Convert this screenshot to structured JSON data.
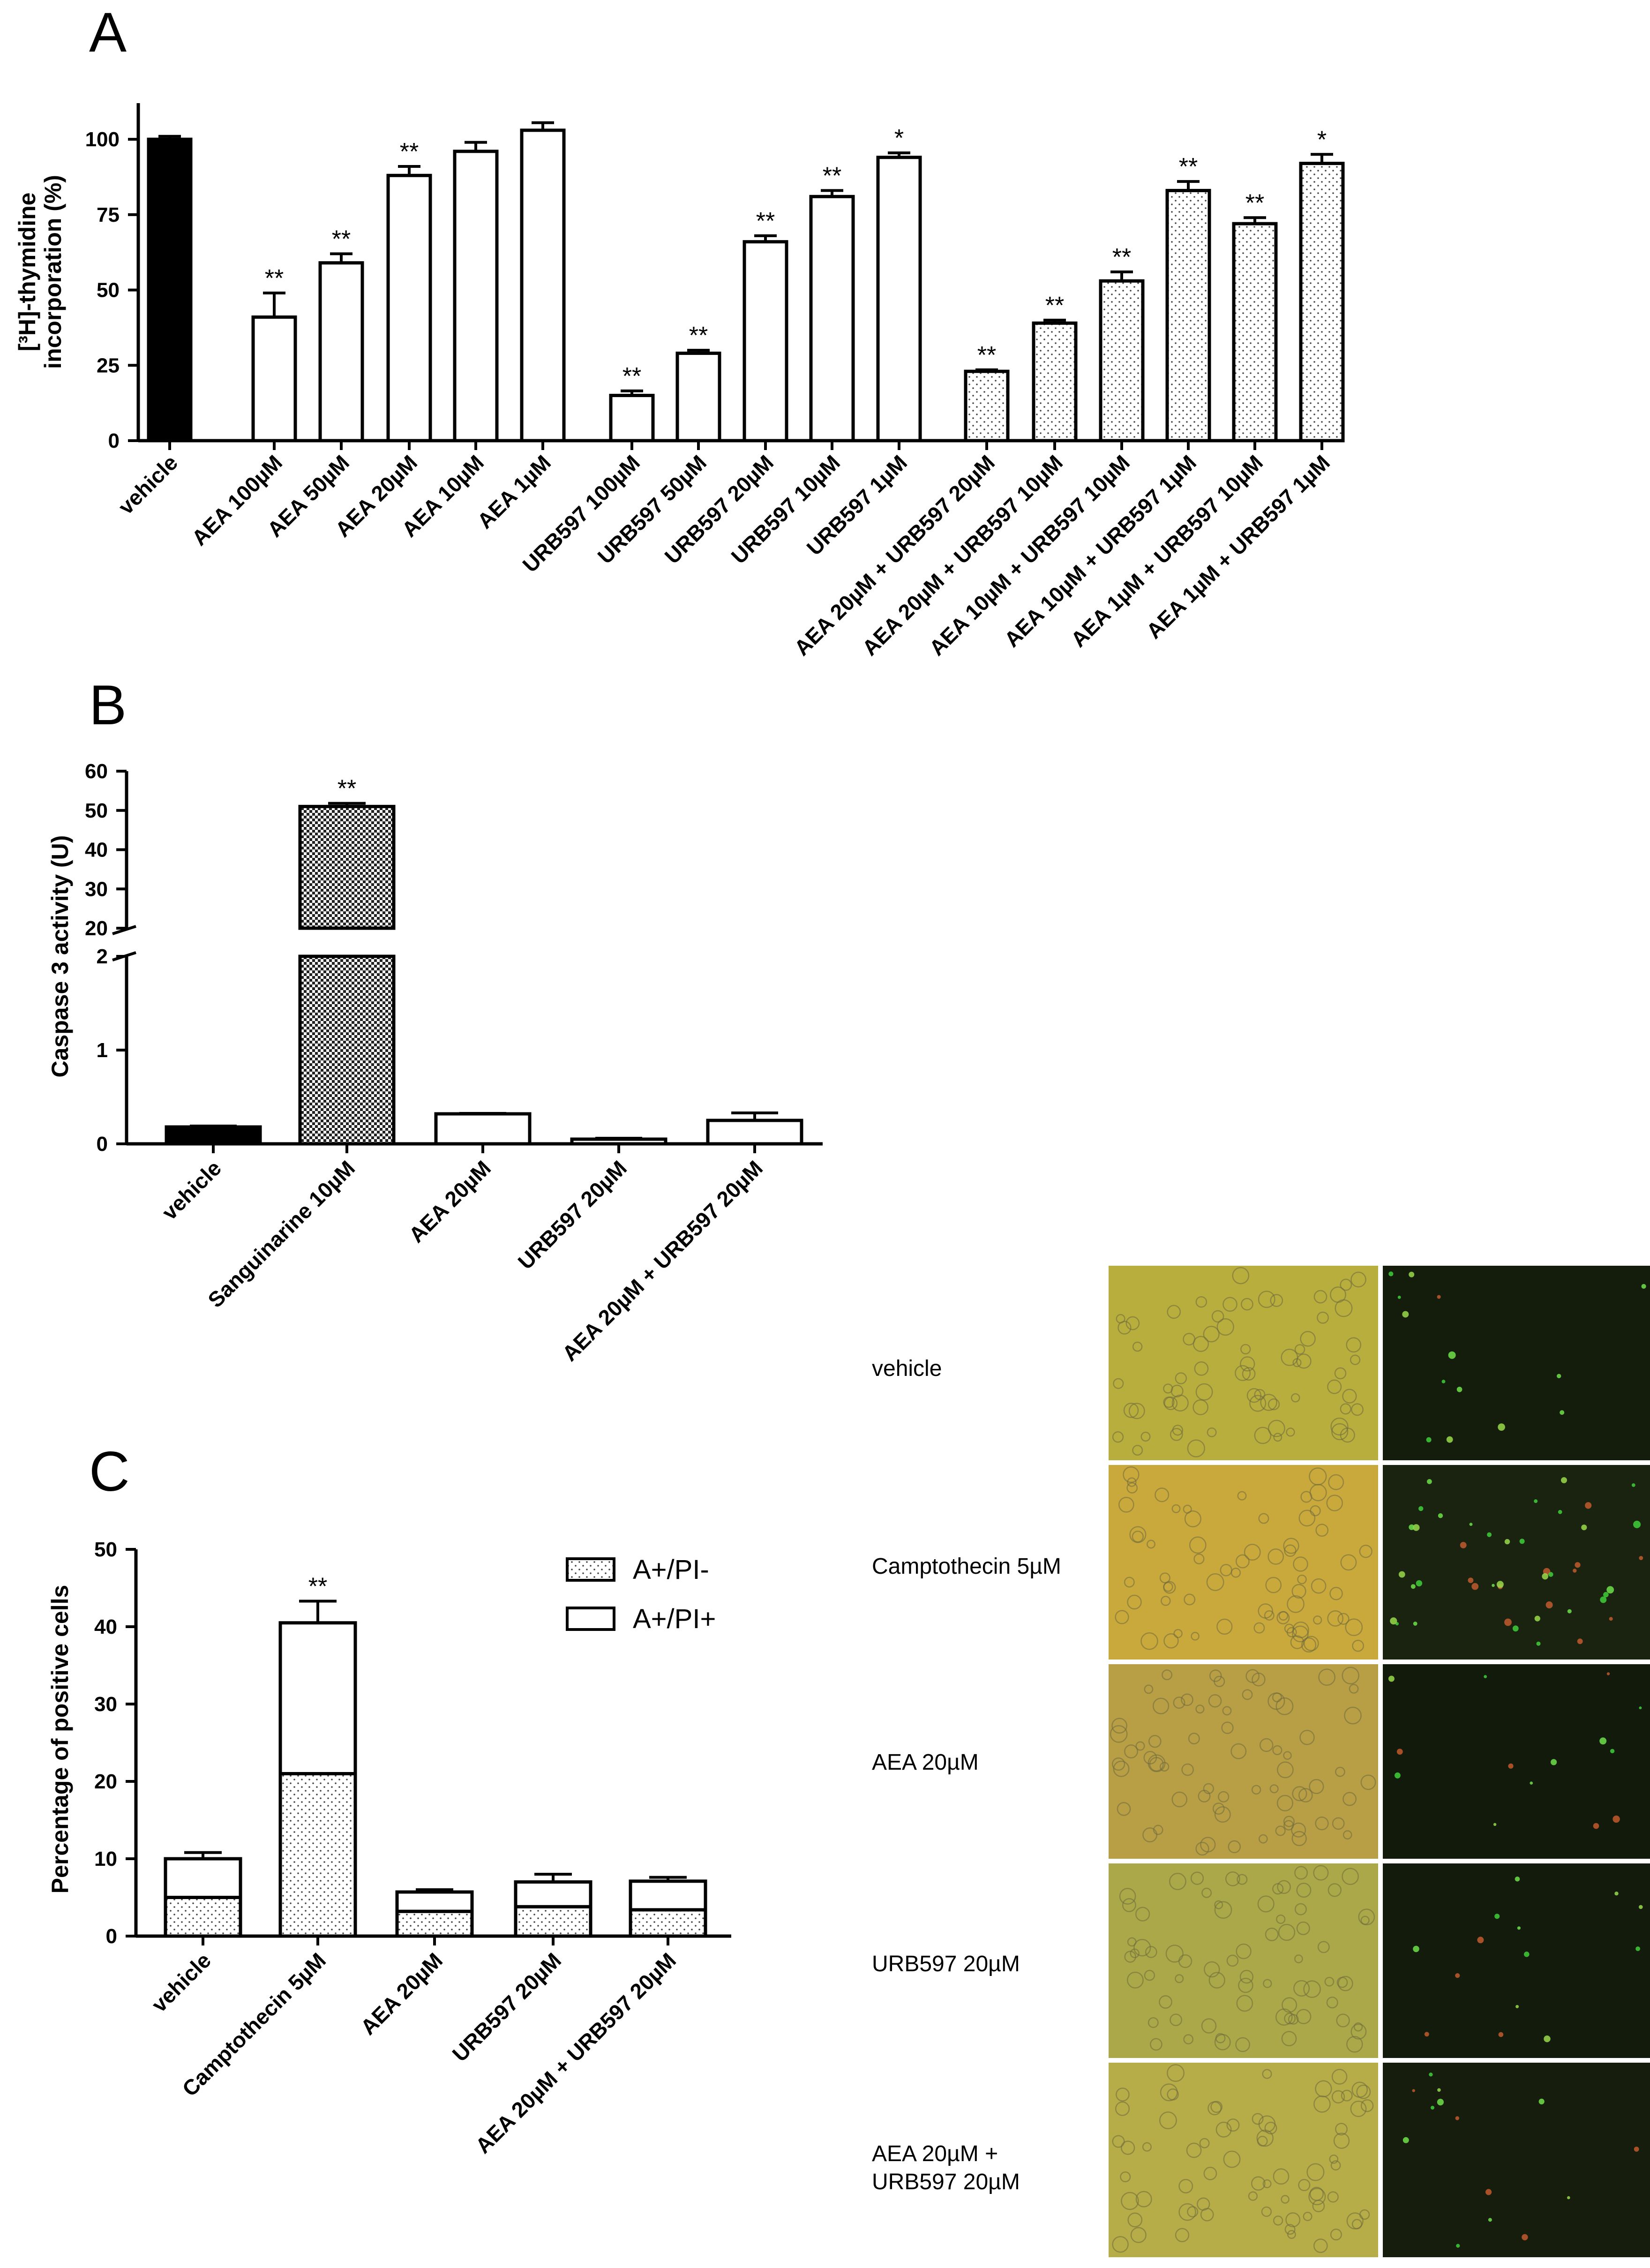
{
  "panels": {
    "A": {
      "label": "A"
    },
    "B": {
      "label": "B"
    },
    "C": {
      "label": "C"
    }
  },
  "chart_data": [
    {
      "id": "A",
      "type": "bar",
      "ylabel_line1": "[³H]-thymidine",
      "ylabel_line2": "incorporation (%)",
      "ylim": [
        0,
        112
      ],
      "yticks": [
        0,
        25,
        50,
        75,
        100
      ],
      "grid": false,
      "categories": [
        "vehicle",
        "AEA 100µM",
        "AEA 50µM",
        "AEA 20µM",
        "AEA 10µM",
        "AEA 1µM",
        "URB597 100µM",
        "URB597 50µM",
        "URB597 20µM",
        "URB597 10µM",
        "URB597 1µM",
        "AEA 20µM + URB597 20µM",
        "AEA 20µM + URB597 10µM",
        "AEA 10µM + URB597 10µM",
        "AEA 10µM + URB597 1µM",
        "AEA 1µM + URB597 10µM",
        "AEA 1µM + URB597 1µM"
      ],
      "values": [
        100,
        41,
        59,
        88,
        96,
        103,
        15,
        29,
        66,
        81,
        94,
        23,
        39,
        53,
        83,
        72,
        92
      ],
      "errors": [
        1,
        8,
        3,
        3,
        3,
        2.5,
        1.5,
        1,
        2,
        2,
        1.5,
        0.5,
        1,
        3,
        3,
        2,
        3
      ],
      "significance": [
        "",
        "**",
        "**",
        "**",
        "",
        "",
        "**",
        "**",
        "**",
        "**",
        "*",
        "**",
        "**",
        "**",
        "**",
        "**",
        "*"
      ],
      "fills": [
        "solid",
        "open",
        "open",
        "open",
        "open",
        "open",
        "open",
        "open",
        "open",
        "open",
        "open",
        "dotted",
        "dotted",
        "dotted",
        "dotted",
        "dotted",
        "dotted"
      ]
    },
    {
      "id": "B",
      "type": "bar",
      "ylabel": "Caspase 3 activity (U)",
      "ylim_lower": [
        0,
        2
      ],
      "ylim_upper": [
        20,
        60
      ],
      "yticks_lower": [
        0,
        1,
        2
      ],
      "yticks_upper": [
        20,
        30,
        40,
        50,
        60
      ],
      "broken_axis": true,
      "grid": false,
      "categories": [
        "vehicle",
        "Sanguinarine 10µM",
        "AEA 20µM",
        "URB597 20µM",
        "AEA 20µM + URB597 20µM"
      ],
      "values": [
        0.18,
        51,
        0.32,
        0.05,
        0.25
      ],
      "errors": [
        0.01,
        0.8,
        0.005,
        0.01,
        0.08
      ],
      "significance": [
        "",
        "**",
        "",
        "",
        ""
      ],
      "fills": [
        "solid",
        "checker",
        "open",
        "open",
        "open"
      ]
    },
    {
      "id": "C",
      "type": "bar",
      "stacked": true,
      "ylabel": "Percentage of positive cells",
      "ylim": [
        0,
        50
      ],
      "yticks": [
        0,
        10,
        20,
        30,
        40,
        50
      ],
      "grid": false,
      "legend_placement": "top-right",
      "categories": [
        "vehicle",
        "Camptothecin 5µM",
        "AEA 20µM",
        "URB597 20µM",
        "AEA 20µM + URB597 20µM"
      ],
      "series": [
        {
          "name": "A+/PI-",
          "values": [
            5,
            21,
            3.2,
            3.8,
            3.4
          ],
          "errors": [
            0.6,
            2,
            0.4,
            0.4,
            0.3
          ],
          "significance": [
            "",
            "**",
            "",
            "",
            ""
          ],
          "fill": "dotted"
        },
        {
          "name": "A+/PI+",
          "values": [
            5,
            19.5,
            2.5,
            3.2,
            3.7
          ],
          "errors": [
            0.8,
            2.8,
            0.3,
            1,
            0.5
          ],
          "significance": [
            "",
            "**",
            "",
            "",
            ""
          ],
          "fill": "open"
        }
      ]
    }
  ],
  "micrographs": {
    "rows": [
      {
        "label": "vehicle",
        "field_tone": "#b8ae3e",
        "fluo_tone": "#141c0c"
      },
      {
        "label": "Camptothecin 5µM",
        "field_tone": "#c9a83c",
        "fluo_tone": "#1a230f"
      },
      {
        "label": "AEA 20µM",
        "field_tone": "#b89e45",
        "fluo_tone": "#111a0b"
      },
      {
        "label": "URB597 20µM",
        "field_tone": "#aaa848",
        "fluo_tone": "#121b0c"
      },
      {
        "label_line1": "AEA 20µM +",
        "label_line2": "URB597 20µM",
        "field_tone": "#b6ac48",
        "fluo_tone": "#161d0c"
      }
    ]
  }
}
